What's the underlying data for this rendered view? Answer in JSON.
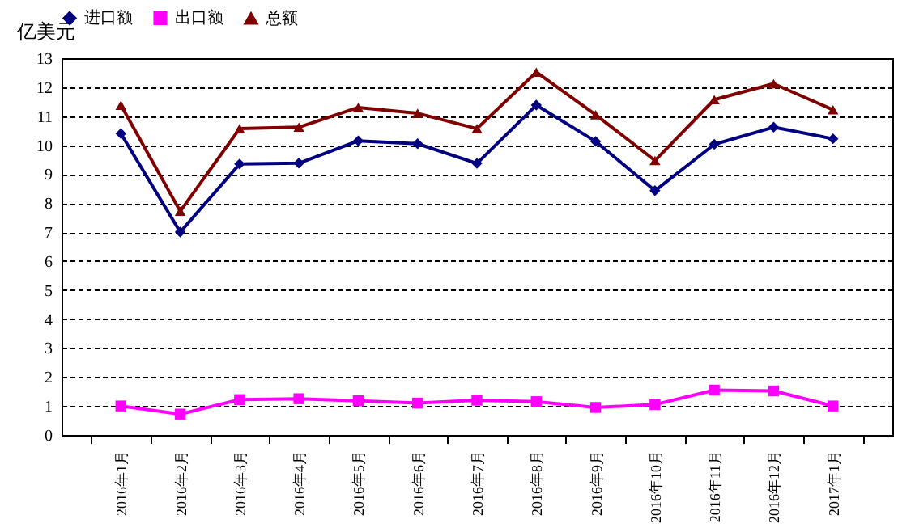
{
  "chart_data": {
    "type": "line",
    "ylabel": "亿美元",
    "categories": [
      "2016年1月",
      "2016年2月",
      "2016年3月",
      "2016年4月",
      "2016年5月",
      "2016年6月",
      "2016年7月",
      "2016年8月",
      "2016年9月",
      "2016年10月",
      "2016年11月",
      "2016年12月",
      "2017年1月"
    ],
    "series": [
      {
        "name": "进口额",
        "color": "#000080",
        "marker": "diamond",
        "values": [
          10.4,
          7.0,
          9.35,
          9.38,
          10.15,
          10.05,
          9.37,
          11.38,
          10.13,
          8.43,
          10.03,
          10.62,
          10.22
        ]
      },
      {
        "name": "出口额",
        "color": "#ff00ff",
        "marker": "square",
        "values": [
          1.0,
          0.72,
          1.22,
          1.25,
          1.18,
          1.1,
          1.2,
          1.15,
          0.95,
          1.05,
          1.55,
          1.52,
          1.0
        ]
      },
      {
        "name": "总额",
        "color": "#800000",
        "marker": "triangle",
        "values": [
          11.38,
          7.72,
          10.57,
          10.62,
          11.3,
          11.1,
          10.57,
          12.52,
          11.05,
          9.47,
          11.57,
          12.12,
          11.22
        ]
      }
    ],
    "ylim": [
      0,
      13
    ],
    "yticks": [
      0,
      1,
      2,
      3,
      4,
      5,
      6,
      7,
      8,
      9,
      10,
      11,
      12,
      13
    ],
    "grid": "y",
    "legend": "top",
    "line_style": "solid"
  }
}
